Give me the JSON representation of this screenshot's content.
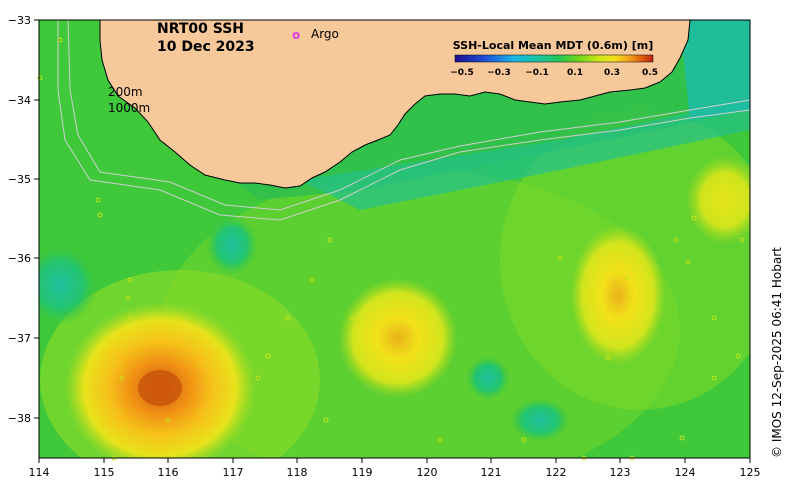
{
  "title": {
    "product": "NRT00 SSH",
    "date": "10 Dec 2023"
  },
  "argo_legend": {
    "marker": "o",
    "label": "Argo",
    "color": "#e040e0"
  },
  "colorbar": {
    "title": "SSH-Local Mean MDT (0.6m) [m]",
    "ticks": [
      "−0.5",
      "−0.3",
      "−0.1",
      "0.1",
      "0.3",
      "0.5"
    ],
    "colors": [
      "#1a0f8c",
      "#1f4fd8",
      "#18b7e6",
      "#19c7a4",
      "#22c45a",
      "#6ad61c",
      "#c8e61a",
      "#f2e21a",
      "#f2a21a",
      "#e26010",
      "#b82010"
    ]
  },
  "isobaths": {
    "shallow": "200m",
    "deep": "1000m"
  },
  "axes": {
    "x_ticks": [
      "114",
      "115",
      "116",
      "117",
      "118",
      "119",
      "120",
      "121",
      "122",
      "123",
      "124",
      "125"
    ],
    "y_ticks": [
      "−33",
      "−34",
      "−35",
      "−36",
      "−37",
      "−38"
    ]
  },
  "credit": "© IMOS 12-Sep-2025 06:41 Hobart",
  "colors": {
    "land": "#f7c89a",
    "coast_outline": "#000000",
    "isobath_line": "#cfcfcf",
    "sea_base": "#3ec83a"
  }
}
